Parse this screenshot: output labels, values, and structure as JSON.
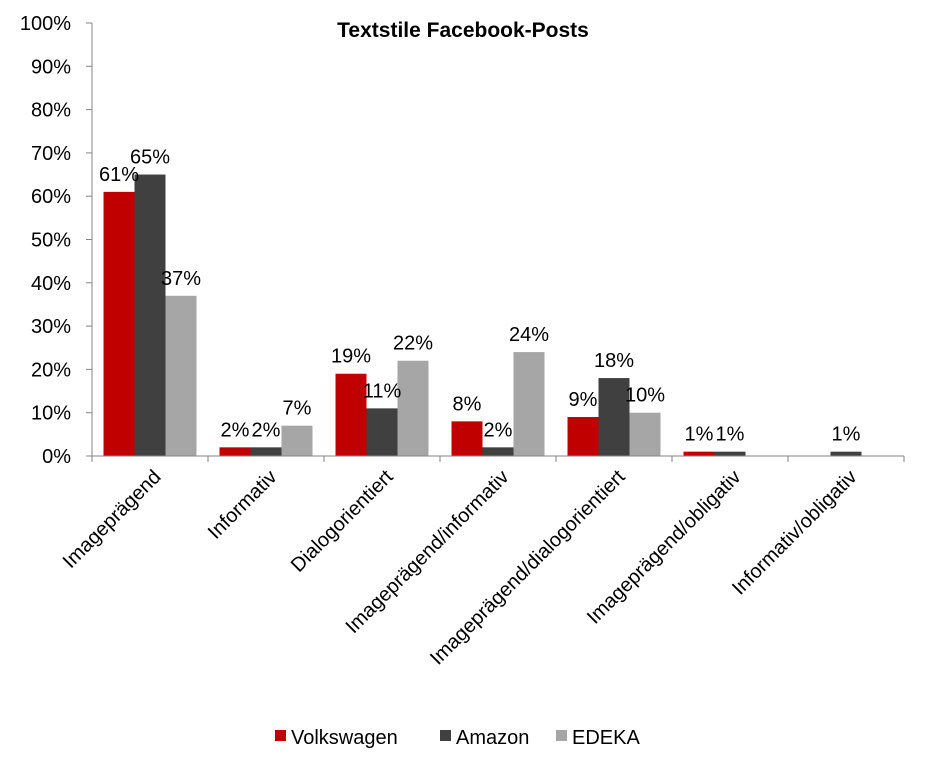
{
  "chart_data": {
    "type": "bar",
    "title": "Textstile Facebook-Posts",
    "xlabel": "",
    "ylabel": "",
    "ylim": [
      0,
      100
    ],
    "y_ticks": [
      "0%",
      "10%",
      "20%",
      "30%",
      "40%",
      "50%",
      "60%",
      "70%",
      "80%",
      "90%",
      "100%"
    ],
    "categories": [
      "Imageprägend",
      "Informativ",
      "Dialogorientiert",
      "Imageprägend/informativ",
      "Imageprägend/dialogorientiert",
      "Imageprägend/obligativ",
      "Informativ/obligativ"
    ],
    "series": [
      {
        "name": "Volkswagen",
        "color": "#C00000",
        "values": [
          61,
          2,
          19,
          8,
          9,
          1,
          null
        ],
        "labels": [
          "61%",
          "2%",
          "19%",
          "8%",
          "9%",
          "1%",
          ""
        ]
      },
      {
        "name": "Amazon",
        "color": "#404040",
        "values": [
          65,
          2,
          11,
          2,
          18,
          1,
          1
        ],
        "labels": [
          "65%",
          "2%",
          "11%",
          "2%",
          "18%",
          "1%",
          "1%"
        ]
      },
      {
        "name": "EDEKA",
        "color": "#A6A6A6",
        "values": [
          37,
          7,
          22,
          24,
          10,
          null,
          null
        ],
        "labels": [
          "37%",
          "7%",
          "22%",
          "24%",
          "10%",
          "",
          ""
        ]
      }
    ],
    "legend_position": "bottom",
    "grid": false
  }
}
